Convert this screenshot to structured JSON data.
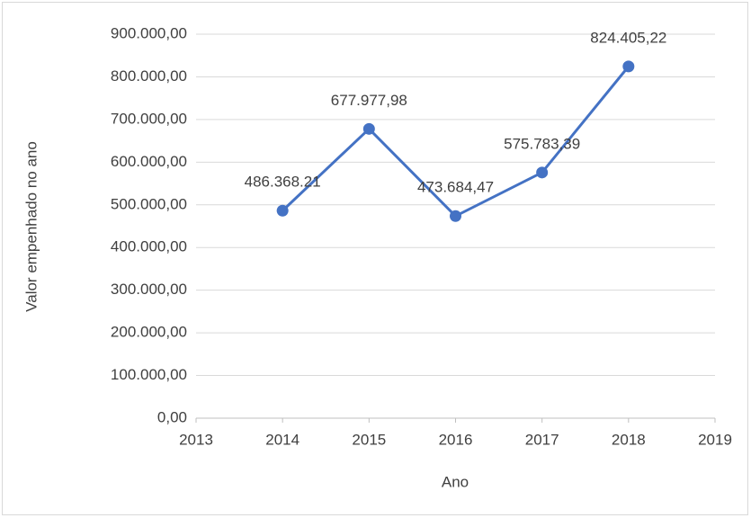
{
  "chart_data": {
    "type": "line",
    "x": [
      2014,
      2015,
      2016,
      2017,
      2018
    ],
    "values": [
      486368.21,
      677977.98,
      473684.47,
      575783.39,
      824405.22
    ],
    "value_labels": [
      "486.368.21",
      "677.977,98",
      "473.684,47",
      "575.783,39",
      "824.405,22"
    ],
    "color": "#4472c4",
    "xlabel": "Ano",
    "ylabel": "Valor empenhado no ano",
    "xlim": [
      2013,
      2019
    ],
    "xticks": [
      2013,
      2014,
      2015,
      2016,
      2017,
      2018,
      2019
    ],
    "ylim": [
      0,
      900000
    ],
    "yticks": [
      {
        "value": 0,
        "label": "0,00"
      },
      {
        "value": 100000,
        "label": "100.000,00"
      },
      {
        "value": 200000,
        "label": "200.000,00"
      },
      {
        "value": 300000,
        "label": "300.000,00"
      },
      {
        "value": 400000,
        "label": "400.000,00"
      },
      {
        "value": 500000,
        "label": "500.000,00"
      },
      {
        "value": 600000,
        "label": "600.000,00"
      },
      {
        "value": 700000,
        "label": "700.000,00"
      },
      {
        "value": 800000,
        "label": "800.000,00"
      },
      {
        "value": 900000,
        "label": "900.000,00"
      }
    ],
    "grid": true
  }
}
